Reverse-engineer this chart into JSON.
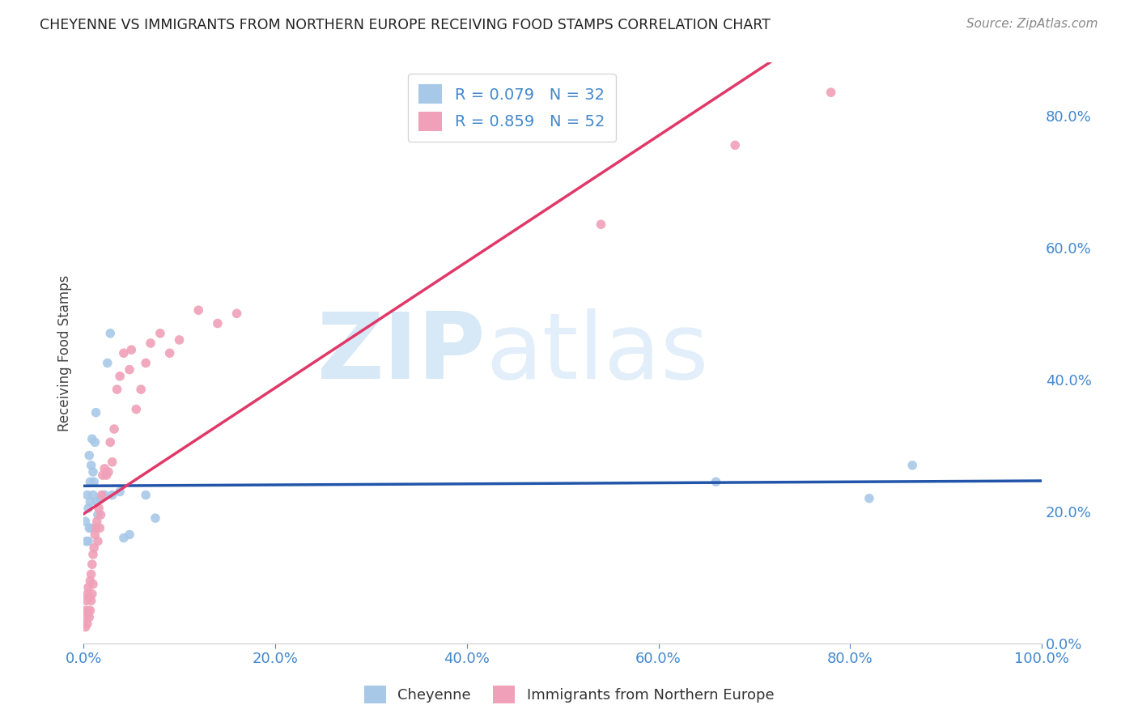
{
  "title": "CHEYENNE VS IMMIGRANTS FROM NORTHERN EUROPE RECEIVING FOOD STAMPS CORRELATION CHART",
  "source": "Source: ZipAtlas.com",
  "ylabel": "Receiving Food Stamps",
  "watermark_zip": "ZIP",
  "watermark_atlas": "atlas",
  "cheyenne_R": 0.079,
  "cheyenne_N": 32,
  "immigrant_R": 0.859,
  "immigrant_N": 52,
  "cheyenne_color": "#a8c8e8",
  "cheyenne_line_color": "#2255aa",
  "immigrant_color": "#f0a0b8",
  "immigrant_line_color": "#e03868",
  "cheyenne_x": [
    0.002,
    0.003,
    0.004,
    0.005,
    0.005,
    0.006,
    0.006,
    0.007,
    0.007,
    0.008,
    0.008,
    0.009,
    0.01,
    0.01,
    0.011,
    0.012,
    0.013,
    0.014,
    0.015,
    0.018,
    0.022,
    0.025,
    0.028,
    0.03,
    0.038,
    0.042,
    0.048,
    0.065,
    0.075,
    0.66,
    0.82,
    0.865
  ],
  "cheyenne_y": [
    0.185,
    0.155,
    0.225,
    0.205,
    0.155,
    0.175,
    0.285,
    0.245,
    0.215,
    0.27,
    0.175,
    0.31,
    0.225,
    0.26,
    0.245,
    0.305,
    0.35,
    0.215,
    0.195,
    0.22,
    0.225,
    0.425,
    0.47,
    0.225,
    0.23,
    0.16,
    0.165,
    0.225,
    0.19,
    0.245,
    0.22,
    0.27
  ],
  "immigrant_x": [
    0.002,
    0.002,
    0.003,
    0.003,
    0.004,
    0.004,
    0.005,
    0.005,
    0.006,
    0.006,
    0.007,
    0.007,
    0.008,
    0.008,
    0.009,
    0.009,
    0.01,
    0.01,
    0.011,
    0.012,
    0.013,
    0.014,
    0.015,
    0.016,
    0.017,
    0.018,
    0.019,
    0.02,
    0.022,
    0.024,
    0.026,
    0.028,
    0.03,
    0.032,
    0.035,
    0.038,
    0.042,
    0.048,
    0.05,
    0.055,
    0.06,
    0.065,
    0.07,
    0.08,
    0.09,
    0.1,
    0.12,
    0.14,
    0.16,
    0.54,
    0.68,
    0.78
  ],
  "immigrant_y": [
    0.025,
    0.05,
    0.04,
    0.065,
    0.03,
    0.075,
    0.05,
    0.085,
    0.04,
    0.07,
    0.05,
    0.095,
    0.065,
    0.105,
    0.075,
    0.12,
    0.09,
    0.135,
    0.145,
    0.165,
    0.175,
    0.185,
    0.155,
    0.205,
    0.175,
    0.195,
    0.225,
    0.255,
    0.265,
    0.255,
    0.26,
    0.305,
    0.275,
    0.325,
    0.385,
    0.405,
    0.44,
    0.415,
    0.445,
    0.355,
    0.385,
    0.425,
    0.455,
    0.47,
    0.44,
    0.46,
    0.505,
    0.485,
    0.5,
    0.635,
    0.755,
    0.835
  ],
  "xlim": [
    0.0,
    1.0
  ],
  "ylim": [
    0.0,
    0.88
  ],
  "xticks": [
    0.0,
    0.2,
    0.4,
    0.6,
    0.8,
    1.0
  ],
  "xtick_labels": [
    "0.0%",
    "20.0%",
    "40.0%",
    "60.0%",
    "80.0%",
    "100.0%"
  ],
  "yticks": [
    0.0,
    0.2,
    0.4,
    0.6,
    0.8
  ],
  "ytick_labels_right": [
    "0.0%",
    "20.0%",
    "40.0%",
    "60.0%",
    "80.0%"
  ],
  "background_color": "#ffffff",
  "grid_color": "#dddddd",
  "title_color": "#222222",
  "tick_color": "#4488cc",
  "marker_size": 70,
  "chey_line_xlim": [
    0.0,
    1.0
  ],
  "imm_line_xlim": [
    0.0,
    1.0
  ]
}
